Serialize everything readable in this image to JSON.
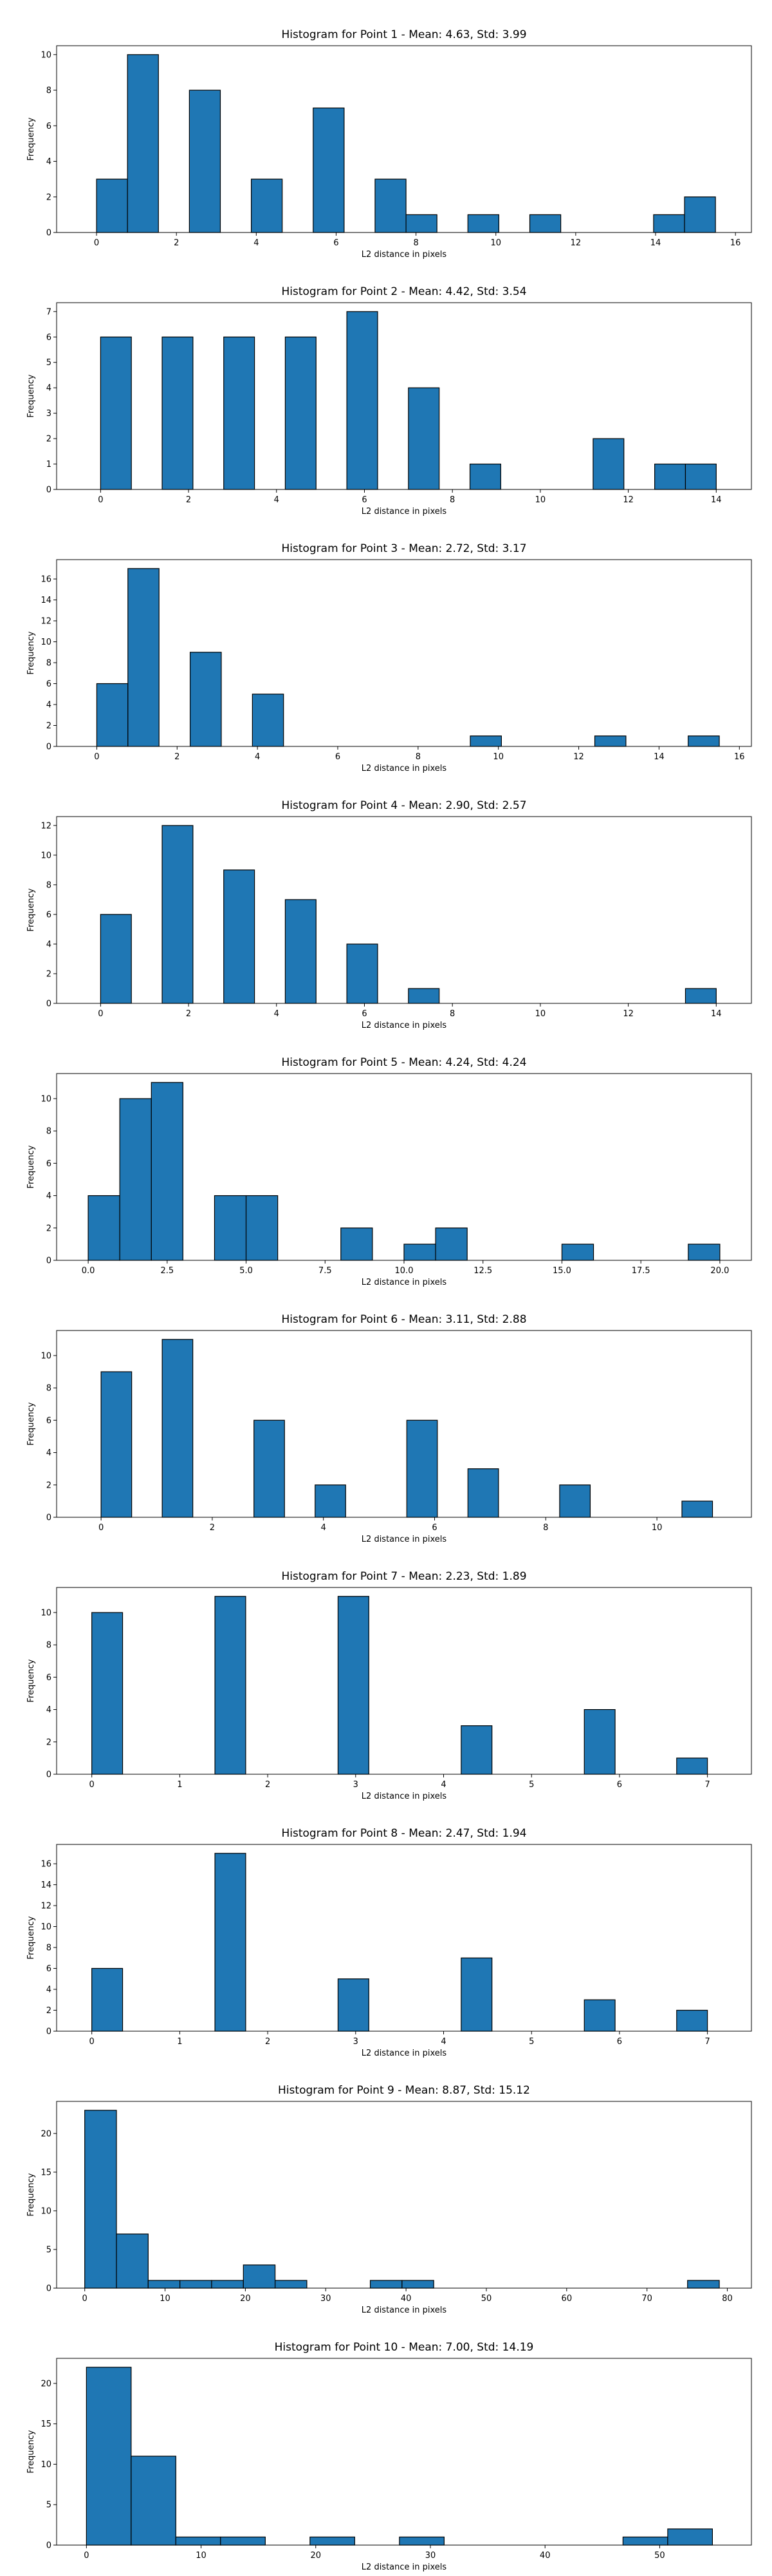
{
  "chart_data": [
    {
      "type": "bar",
      "title": "Histogram for Point 1 - Mean: 4.63, Std: 3.99",
      "xlabel": "L2 distance in pixels",
      "ylabel": "Frequency",
      "xlim": [
        -1,
        16.4
      ],
      "ylim": [
        0,
        10.5
      ],
      "xticks": [
        0,
        2,
        4,
        6,
        8,
        10,
        12,
        14,
        16
      ],
      "xtick_labels": [
        "0",
        "2",
        "4",
        "6",
        "8",
        "10",
        "12",
        "14",
        "16"
      ],
      "yticks": [
        0,
        2,
        4,
        6,
        8,
        10
      ],
      "ytick_labels": [
        "0",
        "2",
        "4",
        "6",
        "8",
        "10"
      ],
      "bin_edges": [
        0,
        0.775,
        1.55,
        2.325,
        3.1,
        3.875,
        4.65,
        5.425,
        6.2,
        6.975,
        7.75,
        8.525,
        9.3,
        10.075,
        10.85,
        11.625,
        12.4,
        13.175,
        13.95,
        14.725,
        15.5
      ],
      "counts": [
        3,
        10,
        0,
        8,
        0,
        3,
        0,
        7,
        0,
        3,
        1,
        0,
        1,
        0,
        1,
        0,
        0,
        0,
        1,
        2
      ],
      "color": "#1f77b4",
      "edgecolor": "#000000"
    },
    {
      "type": "bar",
      "title": "Histogram for Point 2 - Mean: 4.42, Std: 3.54",
      "xlabel": "L2 distance in pixels",
      "ylabel": "Frequency",
      "xlim": [
        -1,
        14.8
      ],
      "ylim": [
        0,
        7.35
      ],
      "xticks": [
        0,
        2,
        4,
        6,
        8,
        10,
        12,
        14
      ],
      "xtick_labels": [
        "0",
        "2",
        "4",
        "6",
        "8",
        "10",
        "12",
        "14"
      ],
      "yticks": [
        0,
        1,
        2,
        3,
        4,
        5,
        6,
        7
      ],
      "ytick_labels": [
        "0",
        "1",
        "2",
        "3",
        "4",
        "5",
        "6",
        "7"
      ],
      "bin_edges": [
        0,
        0.7,
        1.4,
        2.1,
        2.8,
        3.5,
        4.2,
        4.9,
        5.6,
        6.3,
        7.0,
        7.7,
        8.4,
        9.1,
        9.8,
        10.5,
        11.2,
        11.9,
        12.6,
        13.3,
        14.0
      ],
      "counts": [
        6,
        0,
        6,
        0,
        6,
        0,
        6,
        0,
        7,
        0,
        4,
        0,
        1,
        0,
        0,
        0,
        2,
        0,
        1,
        1
      ],
      "color": "#1f77b4",
      "edgecolor": "#000000"
    },
    {
      "type": "bar",
      "title": "Histogram for Point 3 - Mean: 2.72, Std: 3.17",
      "xlabel": "L2 distance in pixels",
      "ylabel": "Frequency",
      "xlim": [
        -1,
        16.3
      ],
      "ylim": [
        0,
        17.85
      ],
      "xticks": [
        0,
        2,
        4,
        6,
        8,
        10,
        12,
        14,
        16
      ],
      "xtick_labels": [
        "0",
        "2",
        "4",
        "6",
        "8",
        "10",
        "12",
        "14",
        "16"
      ],
      "yticks": [
        0,
        2,
        4,
        6,
        8,
        10,
        12,
        14,
        16
      ],
      "ytick_labels": [
        "0",
        "2",
        "4",
        "6",
        "8",
        "10",
        "12",
        "14",
        "16"
      ],
      "bin_edges": [
        0,
        0.775,
        1.55,
        2.325,
        3.1,
        3.875,
        4.65,
        5.425,
        6.2,
        6.975,
        7.75,
        8.525,
        9.3,
        10.075,
        10.85,
        11.625,
        12.4,
        13.175,
        13.95,
        14.725,
        15.5
      ],
      "counts": [
        6,
        17,
        0,
        9,
        0,
        5,
        0,
        0,
        0,
        0,
        0,
        0,
        1,
        0,
        0,
        0,
        1,
        0,
        0,
        1
      ],
      "color": "#1f77b4",
      "edgecolor": "#000000"
    },
    {
      "type": "bar",
      "title": "Histogram for Point 4 - Mean: 2.90, Std: 2.57",
      "xlabel": "L2 distance in pixels",
      "ylabel": "Frequency",
      "xlim": [
        -1,
        14.8
      ],
      "ylim": [
        0,
        12.6
      ],
      "xticks": [
        0,
        2,
        4,
        6,
        8,
        10,
        12,
        14
      ],
      "xtick_labels": [
        "0",
        "2",
        "4",
        "6",
        "8",
        "10",
        "12",
        "14"
      ],
      "yticks": [
        0,
        2,
        4,
        6,
        8,
        10,
        12
      ],
      "ytick_labels": [
        "0",
        "2",
        "4",
        "6",
        "8",
        "10",
        "12"
      ],
      "bin_edges": [
        0,
        0.7,
        1.4,
        2.1,
        2.8,
        3.5,
        4.2,
        4.9,
        5.6,
        6.3,
        7.0,
        7.7,
        8.4,
        9.1,
        9.8,
        10.5,
        11.2,
        11.9,
        12.6,
        13.3,
        14.0
      ],
      "counts": [
        6,
        0,
        12,
        0,
        9,
        0,
        7,
        0,
        4,
        0,
        1,
        0,
        0,
        0,
        0,
        0,
        0,
        0,
        0,
        1
      ],
      "color": "#1f77b4",
      "edgecolor": "#000000"
    },
    {
      "type": "bar",
      "title": "Histogram for Point 5 - Mean: 4.24, Std: 4.24",
      "xlabel": "L2 distance in pixels",
      "ylabel": "Frequency",
      "xlim": [
        -1,
        21
      ],
      "ylim": [
        0,
        11.55
      ],
      "xticks": [
        0,
        2.5,
        5,
        7.5,
        10,
        12.5,
        15,
        17.5,
        20
      ],
      "xtick_labels": [
        "0.0",
        "2.5",
        "5.0",
        "7.5",
        "10.0",
        "12.5",
        "15.0",
        "17.5",
        "20.0"
      ],
      "yticks": [
        0,
        2,
        4,
        6,
        8,
        10
      ],
      "ytick_labels": [
        "0",
        "2",
        "4",
        "6",
        "8",
        "10"
      ],
      "bin_edges": [
        0,
        1,
        2,
        3,
        4,
        5,
        6,
        7,
        8,
        9,
        10,
        11,
        12,
        13,
        14,
        15,
        16,
        17,
        18,
        19,
        20
      ],
      "counts": [
        4,
        10,
        11,
        0,
        4,
        4,
        0,
        0,
        2,
        0,
        1,
        2,
        0,
        0,
        0,
        1,
        0,
        0,
        0,
        1
      ],
      "color": "#1f77b4",
      "edgecolor": "#000000"
    },
    {
      "type": "bar",
      "title": "Histogram for Point 6 - Mean: 3.11, Std: 2.88",
      "xlabel": "L2 distance in pixels",
      "ylabel": "Frequency",
      "xlim": [
        -0.8,
        11.7
      ],
      "ylim": [
        0,
        11.55
      ],
      "xticks": [
        0,
        2,
        4,
        6,
        8,
        10
      ],
      "xtick_labels": [
        "0",
        "2",
        "4",
        "6",
        "8",
        "10"
      ],
      "yticks": [
        0,
        2,
        4,
        6,
        8,
        10
      ],
      "ytick_labels": [
        "0",
        "2",
        "4",
        "6",
        "8",
        "10"
      ],
      "bin_edges": [
        0,
        0.55,
        1.1,
        1.65,
        2.2,
        2.75,
        3.3,
        3.85,
        4.4,
        4.95,
        5.5,
        6.05,
        6.6,
        7.15,
        7.7,
        8.25,
        8.8,
        9.35,
        9.9,
        10.45,
        11.0
      ],
      "counts": [
        9,
        0,
        11,
        0,
        0,
        6,
        0,
        2,
        0,
        0,
        6,
        0,
        3,
        0,
        0,
        2,
        0,
        0,
        0,
        1
      ],
      "color": "#1f77b4",
      "edgecolor": "#000000"
    },
    {
      "type": "bar",
      "title": "Histogram for Point 7 - Mean: 2.23, Std: 1.89",
      "xlabel": "L2 distance in pixels",
      "ylabel": "Frequency",
      "xlim": [
        -0.4,
        7.5
      ],
      "ylim": [
        0,
        11.55
      ],
      "xticks": [
        0,
        1,
        2,
        3,
        4,
        5,
        6,
        7
      ],
      "xtick_labels": [
        "0",
        "1",
        "2",
        "3",
        "4",
        "5",
        "6",
        "7"
      ],
      "yticks": [
        0,
        2,
        4,
        6,
        8,
        10
      ],
      "ytick_labels": [
        "0",
        "2",
        "4",
        "6",
        "8",
        "10"
      ],
      "bin_edges": [
        0,
        0.35,
        0.7,
        1.05,
        1.4,
        1.75,
        2.1,
        2.45,
        2.8,
        3.15,
        3.5,
        3.85,
        4.2,
        4.55,
        4.9,
        5.25,
        5.6,
        5.95,
        6.3,
        6.65,
        7.0
      ],
      "counts": [
        10,
        0,
        0,
        0,
        11,
        0,
        0,
        0,
        11,
        0,
        0,
        0,
        3,
        0,
        0,
        0,
        4,
        0,
        0,
        1
      ],
      "color": "#1f77b4",
      "edgecolor": "#000000"
    },
    {
      "type": "bar",
      "title": "Histogram for Point 8 - Mean: 2.47, Std: 1.94",
      "xlabel": "L2 distance in pixels",
      "ylabel": "Frequency",
      "xlim": [
        -0.4,
        7.5
      ],
      "ylim": [
        0,
        17.85
      ],
      "xticks": [
        0,
        1,
        2,
        3,
        4,
        5,
        6,
        7
      ],
      "xtick_labels": [
        "0",
        "1",
        "2",
        "3",
        "4",
        "5",
        "6",
        "7"
      ],
      "yticks": [
        0,
        2,
        4,
        6,
        8,
        10,
        12,
        14,
        16
      ],
      "ytick_labels": [
        "0",
        "2",
        "4",
        "6",
        "8",
        "10",
        "12",
        "14",
        "16"
      ],
      "bin_edges": [
        0,
        0.35,
        0.7,
        1.05,
        1.4,
        1.75,
        2.1,
        2.45,
        2.8,
        3.15,
        3.5,
        3.85,
        4.2,
        4.55,
        4.9,
        5.25,
        5.6,
        5.95,
        6.3,
        6.65,
        7.0
      ],
      "counts": [
        6,
        0,
        0,
        0,
        17,
        0,
        0,
        0,
        5,
        0,
        0,
        0,
        7,
        0,
        0,
        0,
        3,
        0,
        0,
        2
      ],
      "color": "#1f77b4",
      "edgecolor": "#000000"
    },
    {
      "type": "bar",
      "title": "Histogram for Point 9 - Mean: 8.87, Std: 15.12",
      "xlabel": "L2 distance in pixels",
      "ylabel": "Frequency",
      "xlim": [
        -3.5,
        83
      ],
      "ylim": [
        0,
        24.15
      ],
      "xticks": [
        0,
        10,
        20,
        30,
        40,
        50,
        60,
        70,
        80
      ],
      "xtick_labels": [
        "0",
        "10",
        "20",
        "30",
        "40",
        "50",
        "60",
        "70",
        "80"
      ],
      "yticks": [
        0,
        5,
        10,
        15,
        20
      ],
      "ytick_labels": [
        "0",
        "5",
        "10",
        "15",
        "20"
      ],
      "bin_edges": [
        0,
        3.95,
        7.9,
        11.85,
        15.8,
        19.75,
        23.7,
        27.65,
        31.6,
        35.55,
        39.5,
        43.45,
        47.4,
        51.35,
        55.3,
        59.25,
        63.2,
        67.15,
        71.1,
        75.05,
        79.0
      ],
      "counts": [
        23,
        7,
        1,
        1,
        1,
        3,
        1,
        0,
        0,
        1,
        1,
        0,
        0,
        0,
        0,
        0,
        0,
        0,
        0,
        1
      ],
      "color": "#1f77b4",
      "edgecolor": "#000000"
    },
    {
      "type": "bar",
      "title": "Histogram for Point 10 - Mean: 7.00, Std: 14.19",
      "xlabel": "L2 distance in pixels",
      "ylabel": "Frequency",
      "xlim": [
        -2.6,
        58
      ],
      "ylim": [
        0,
        23.1
      ],
      "xticks": [
        0,
        10,
        20,
        30,
        40,
        50
      ],
      "xtick_labels": [
        "0",
        "10",
        "20",
        "30",
        "40",
        "50"
      ],
      "yticks": [
        0,
        5,
        10,
        15,
        20
      ],
      "ytick_labels": [
        "0",
        "5",
        "10",
        "15",
        "20"
      ],
      "bin_edges": [
        0,
        3.9,
        7.8,
        11.7,
        15.6,
        19.5,
        23.4,
        27.3,
        31.2,
        35.1,
        39.0,
        42.9,
        46.8,
        50.7,
        54.6
      ],
      "counts": [
        22,
        11,
        1,
        1,
        0,
        1,
        0,
        1,
        0,
        0,
        0,
        0,
        1,
        2
      ],
      "color": "#1f77b4",
      "edgecolor": "#000000"
    }
  ]
}
